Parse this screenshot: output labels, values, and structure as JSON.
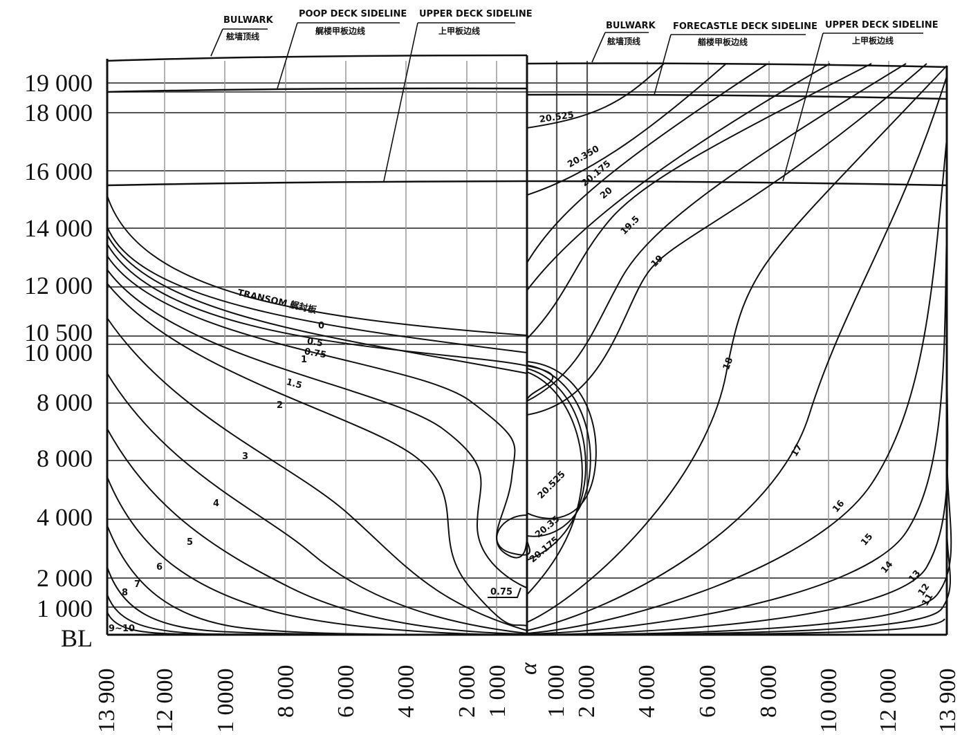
{
  "y_axis_labels": [
    "19 000",
    "18 000",
    "16 000",
    "14 000",
    "12 000",
    "10 500",
    "10 000",
    "8 000",
    "8 000",
    "4 000",
    "2 000",
    "1 000",
    "BL"
  ],
  "x_axis_left_labels": [
    "13 900",
    "12 000",
    "1 0000",
    "8 000",
    "6 000",
    "4 000",
    "2 000",
    "1 000"
  ],
  "x_axis_center_label": "α",
  "x_axis_right_labels": [
    "1 000",
    "2 000",
    "4 000",
    "6 000",
    "8 000",
    "10 000",
    "12 000",
    "13 900"
  ],
  "callouts_left": {
    "bulwark": "BULWARK",
    "bulwark_sub": "舷墙顶线",
    "poop": "POOP DECK SIDELINE",
    "poop_sub": "艉楼甲板边线",
    "upper": "UPPER DECK SIDELINE",
    "upper_sub": "上甲板边线"
  },
  "callouts_right": {
    "bulwark": "BULWARK",
    "bulwark_sub": "舷墙顶线",
    "forecastle": "FORECASTLE DECK SIDELINE",
    "forecastle_sub": "艏楼甲板边线",
    "upper": "UPPER DECK SIDELINE",
    "upper_sub": "上甲板边线"
  },
  "transom_label": "TRANSOM 艉封板",
  "aft_station_labels": [
    "0",
    "0.5",
    "0.75",
    "1",
    "1.5",
    "2",
    "3",
    "4",
    "5",
    "6",
    "7",
    "8",
    "9~10",
    "0.75"
  ],
  "fwd_station_labels_upper": [
    "20.525",
    "20.350",
    "20.175",
    "20",
    "19.5",
    "19"
  ],
  "fwd_station_labels_lower": [
    "20.525",
    "20.35",
    "20.175"
  ],
  "fwd_station_labels_mid": [
    "18",
    "17",
    "16",
    "15",
    "14",
    "13",
    "12",
    "11"
  ],
  "line_color": "#111111",
  "grid_color": "#555555",
  "light_grid_color": "#999999"
}
